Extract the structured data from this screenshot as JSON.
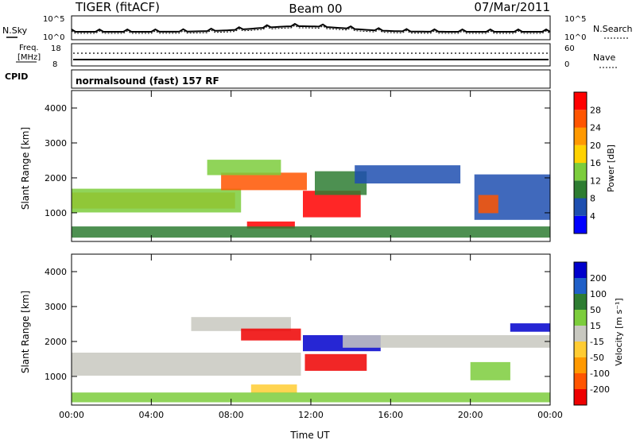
{
  "header": {
    "left_title": "TIGER (fitACF)",
    "center_title": "Beam 00",
    "right_title": "07/Mar/2011"
  },
  "panels": {
    "nsky": {
      "left_label": "N.Sky",
      "left_ticks": [
        "10^5",
        "10^0"
      ],
      "right_ticks": [
        "10^5",
        "10^0"
      ],
      "right_label": "N.Search"
    },
    "freq": {
      "left_label_1": "Freq.",
      "left_label_2": "[MHz]",
      "left_ticks": [
        "18",
        "8"
      ],
      "right_ticks": [
        "60",
        "0"
      ],
      "right_label": "Nave"
    },
    "cpid": {
      "left_label": "CPID",
      "mode_text": "normalsound (fast) 157 RF"
    }
  },
  "chart_data": [
    {
      "type": "heatmap",
      "name": "power",
      "ylabel": "Slant Range [km]",
      "yticks": [
        "1000",
        "2000",
        "3000",
        "4000"
      ],
      "ylim": [
        180,
        4500
      ],
      "colorbar": {
        "label": "Power [dB]",
        "ticks": [
          "4",
          "8",
          "12",
          "16",
          "20",
          "24",
          "28"
        ],
        "colors": [
          "#0000ff",
          "#1e4fb0",
          "#2e7d32",
          "#7ccd3c",
          "#ffd200",
          "#ff9900",
          "#ff5500",
          "#ff0000"
        ]
      }
    },
    {
      "type": "heatmap",
      "name": "velocity",
      "ylabel": "Slant Range [km]",
      "yticks": [
        "1000",
        "2000",
        "3000",
        "4000"
      ],
      "ylim": [
        180,
        4500
      ],
      "colorbar": {
        "label": "Velocity [m s⁻¹]",
        "ticks": [
          "200",
          "100",
          "50",
          "15",
          "-15",
          "-50",
          "-100",
          "-200"
        ],
        "colors": [
          "#0000cc",
          "#2060c8",
          "#2e7d32",
          "#7ccd3c",
          "#c8c8c0",
          "#ffcc33",
          "#ff9900",
          "#ff5500",
          "#ee0000"
        ]
      }
    }
  ],
  "xaxis": {
    "label": "Time UT",
    "ticks": [
      "00:00",
      "04:00",
      "08:00",
      "12:00",
      "16:00",
      "20:00",
      "00:00"
    ]
  }
}
